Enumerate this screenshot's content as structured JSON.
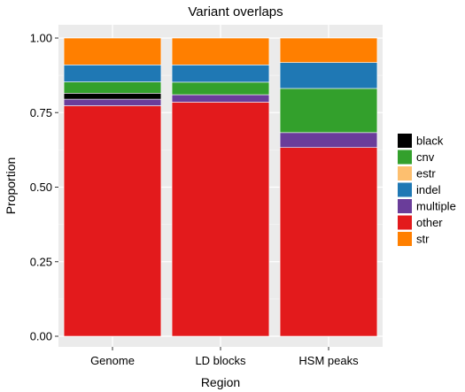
{
  "chart_data": {
    "type": "bar",
    "stacked": true,
    "title": "Variant overlaps",
    "xlabel": "Region",
    "ylabel": "Proportion",
    "ylim": [
      0,
      1
    ],
    "yticks": [
      "0.00",
      "0.25",
      "0.50",
      "0.75",
      "1.00"
    ],
    "ytick_values": [
      0,
      0.25,
      0.5,
      0.75,
      1.0
    ],
    "categories": [
      "Genome",
      "LD blocks",
      "HSM peaks"
    ],
    "grid": true,
    "legend_position": "right",
    "stack_order_bottom_to_top": [
      "other",
      "multiple",
      "black",
      "estr",
      "cnv",
      "indel",
      "str"
    ],
    "series": [
      {
        "name": "black",
        "color": "#000000",
        "values": [
          0.02,
          0.0,
          0.0
        ]
      },
      {
        "name": "cnv",
        "color": "#33a02c",
        "values": [
          0.038,
          0.042,
          0.148
        ]
      },
      {
        "name": "estr",
        "color": "#fdbf6f",
        "values": [
          0.0,
          0.0,
          0.0
        ]
      },
      {
        "name": "indel",
        "color": "#1f78b4",
        "values": [
          0.057,
          0.058,
          0.087
        ]
      },
      {
        "name": "multiple",
        "color": "#6a3d9a",
        "values": [
          0.022,
          0.025,
          0.05
        ]
      },
      {
        "name": "other",
        "color": "#e31a1c",
        "values": [
          0.773,
          0.785,
          0.633
        ]
      },
      {
        "name": "str",
        "color": "#ff7f00",
        "values": [
          0.09,
          0.09,
          0.082
        ]
      }
    ]
  }
}
